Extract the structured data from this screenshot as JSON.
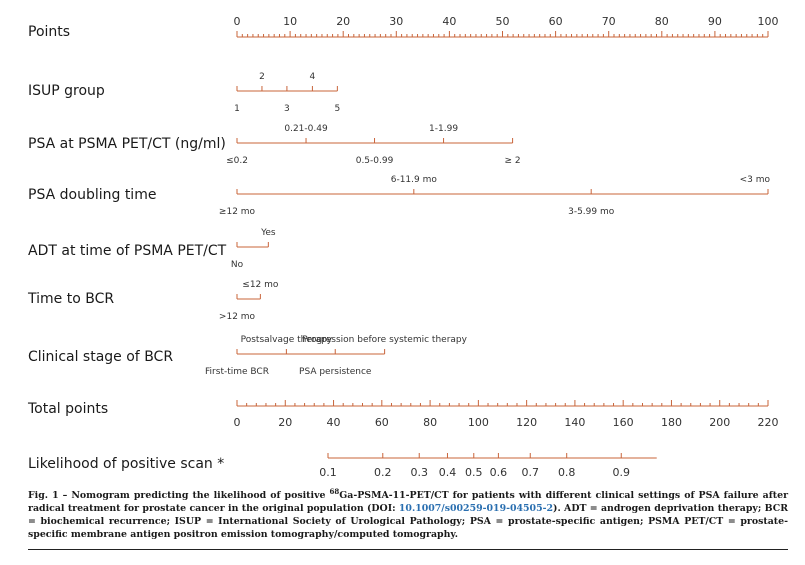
{
  "chart_data": {
    "type": "nomogram",
    "accent_color": "#c8643a",
    "rows": [
      {
        "label": "Points",
        "axis_range": [
          0,
          100
        ],
        "ticks_above": [
          "0",
          "10",
          "20",
          "30",
          "40",
          "50",
          "60",
          "70",
          "80",
          "90",
          "100"
        ],
        "tick_values": [
          0,
          10,
          20,
          30,
          40,
          50,
          60,
          70,
          80,
          90,
          100
        ],
        "minor_step": 1
      },
      {
        "label": "ISUP group",
        "axis_range_points": [
          0,
          18.9
        ],
        "labels_above": [
          {
            "text": "2",
            "points": 4.7
          },
          {
            "text": "4",
            "points": 14.2
          }
        ],
        "labels_below": [
          {
            "text": "1",
            "points": 0
          },
          {
            "text": "3",
            "points": 9.4
          },
          {
            "text": "5",
            "points": 18.9
          }
        ]
      },
      {
        "label": "PSA at PSMA PET/CT (ng/ml)",
        "axis_range_points": [
          0,
          51.9
        ],
        "labels_above": [
          {
            "text": "0.21-0.49",
            "points": 13.0
          },
          {
            "text": "1-1.99",
            "points": 38.9
          }
        ],
        "labels_below": [
          {
            "text": "≤0.2",
            "points": 0
          },
          {
            "text": "0.5-0.99",
            "points": 25.9
          },
          {
            "text": "≥ 2",
            "points": 51.9
          }
        ]
      },
      {
        "label": "PSA doubling time",
        "axis_range_points": [
          0,
          100
        ],
        "labels_above": [
          {
            "text": "6-11.9 mo",
            "points": 33.3
          },
          {
            "text": "<3 mo",
            "points": 100
          }
        ],
        "labels_below": [
          {
            "text": "≥12 mo",
            "points": 0
          },
          {
            "text": "3-5.99 mo",
            "points": 66.7
          }
        ]
      },
      {
        "label": "ADT at time of PSMA PET/CT",
        "axis_range_points": [
          0,
          5.9
        ],
        "labels_above": [
          {
            "text": "Yes",
            "points": 5.9
          }
        ],
        "labels_below": [
          {
            "text": "No",
            "points": 0
          }
        ]
      },
      {
        "label": "Time to BCR",
        "axis_range_points": [
          0,
          4.4
        ],
        "labels_above": [
          {
            "text": "≤12 mo",
            "points": 4.4
          }
        ],
        "labels_below": [
          {
            "text": ">12 mo",
            "points": 0
          }
        ]
      },
      {
        "label": "Clinical stage of BCR",
        "axis_range_points": [
          0,
          27.8
        ],
        "labels_above": [
          {
            "text": "Postsalvage therapy",
            "points": 9.3
          },
          {
            "text": "Progression before systemic therapy",
            "points": 27.8
          }
        ],
        "labels_below": [
          {
            "text": "First-time BCR",
            "points": 0
          },
          {
            "text": "PSA persistence",
            "points": 18.5
          }
        ]
      },
      {
        "label": "Total points",
        "axis_range": [
          0,
          220
        ],
        "ticks_below": [
          "0",
          "20",
          "40",
          "60",
          "80",
          "100",
          "120",
          "140",
          "160",
          "180",
          "200",
          "220"
        ],
        "tick_values": [
          0,
          20,
          40,
          60,
          80,
          100,
          120,
          140,
          160,
          180,
          200,
          220
        ],
        "minor_step": 4
      },
      {
        "label": "Likelihood of positive scan *",
        "axis_range_points": [
          37.7,
          173.9
        ],
        "labels_below": [
          {
            "text": "0.1",
            "value": 0.1,
            "total_points": 37.7
          },
          {
            "text": "0.2",
            "value": 0.2,
            "total_points": 60.4
          },
          {
            "text": "0.3",
            "value": 0.3,
            "total_points": 75.5
          },
          {
            "text": "0.4",
            "value": 0.4,
            "total_points": 87.2
          },
          {
            "text": "0.5",
            "value": 0.5,
            "total_points": 98.1
          },
          {
            "text": "0.6",
            "value": 0.6,
            "total_points": 108.3
          },
          {
            "text": "0.7",
            "value": 0.7,
            "total_points": 121.5
          },
          {
            "text": "0.8",
            "value": 0.8,
            "total_points": 136.6
          },
          {
            "text": "0.9",
            "value": 0.9,
            "total_points": 159.2
          }
        ]
      }
    ]
  },
  "caption": {
    "fig_label": "Fig. 1 – ",
    "text_before_sup": "Nomogram predicting the likelihood of positive ",
    "sup": "68",
    "text_after_sup": "Ga-PSMA-11-PET/CT for patients with different clinical settings of PSA failure after radical treatment for prostate cancer in the original population (DOI: ",
    "doi": "10.1007/s00259-019-04505-2",
    "text_after_doi": "). ADT = androgen deprivation therapy; BCR = biochemical recurrence; ISUP = International Society of Urological Pathology; PSA = prostate-specific antigen; PSMA PET/CT = prostate-specific membrane antigen positron emission tomography/computed tomography."
  }
}
